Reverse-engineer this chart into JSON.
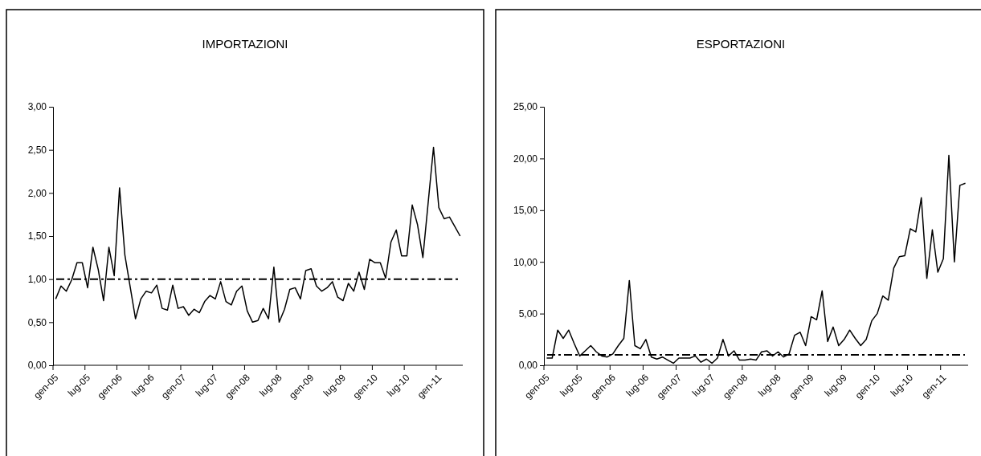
{
  "chart_data": [
    {
      "type": "line",
      "title": "IMPORTAZIONI",
      "categories": [
        "gen-05",
        null,
        null,
        null,
        null,
        null,
        "lug-05",
        null,
        null,
        null,
        null,
        null,
        "gen-06",
        null,
        null,
        null,
        null,
        null,
        "lug-06",
        null,
        null,
        null,
        null,
        null,
        "gen-07",
        null,
        null,
        null,
        null,
        null,
        "lug-07",
        null,
        null,
        null,
        null,
        null,
        "gen-08",
        null,
        null,
        null,
        null,
        null,
        "lug-08",
        null,
        null,
        null,
        null,
        null,
        "gen-09",
        null,
        null,
        null,
        null,
        null,
        "lug-09",
        null,
        null,
        null,
        null,
        null,
        "gen-10",
        null,
        null,
        null,
        null,
        null,
        "lug-10",
        null,
        null,
        null,
        null,
        null,
        "gen-11",
        null,
        null,
        null,
        null
      ],
      "series": [
        {
          "color": "#000000",
          "values": [
            0.77,
            0.92,
            0.86,
            0.99,
            1.19,
            1.19,
            0.9,
            1.37,
            1.11,
            0.75,
            1.37,
            1.04,
            2.06,
            1.28,
            0.91,
            0.54,
            0.77,
            0.86,
            0.84,
            0.93,
            0.66,
            0.64,
            0.93,
            0.66,
            0.68,
            0.58,
            0.65,
            0.61,
            0.74,
            0.81,
            0.77,
            0.97,
            0.74,
            0.7,
            0.86,
            0.92,
            0.63,
            0.5,
            0.52,
            0.66,
            0.54,
            1.14,
            0.5,
            0.65,
            0.88,
            0.9,
            0.77,
            1.1,
            1.12,
            0.92,
            0.86,
            0.9,
            0.97,
            0.79,
            0.75,
            0.95,
            0.86,
            1.08,
            0.88,
            1.23,
            1.19,
            1.19,
            1.01,
            1.43,
            1.57,
            1.27,
            1.27,
            1.86,
            1.63,
            1.25,
            1.89,
            2.53,
            1.83,
            1.7,
            1.72,
            1.61,
            1.5
          ]
        }
      ],
      "ylim": [
        0,
        3
      ],
      "yticks": [
        {
          "value": 0,
          "label": "0,00"
        },
        {
          "value": 0.5,
          "label": "0,50"
        },
        {
          "value": 1,
          "label": "1,00"
        },
        {
          "value": 1.5,
          "label": "1,50"
        },
        {
          "value": 2,
          "label": "2,00"
        },
        {
          "value": 2.5,
          "label": "2,50"
        },
        {
          "value": 3,
          "label": "3,00"
        }
      ],
      "ref_lines": [
        {
          "axis": "y",
          "value": 1,
          "color": "#000000",
          "line_style": "dashed"
        }
      ],
      "grid": false,
      "marker": "none",
      "line_style": "solid"
    },
    {
      "type": "line",
      "title": "ESPORTAZIONI",
      "categories": [
        "gen-05",
        null,
        null,
        null,
        null,
        null,
        "lug-05",
        null,
        null,
        null,
        null,
        null,
        "gen-06",
        null,
        null,
        null,
        null,
        null,
        "lug-06",
        null,
        null,
        null,
        null,
        null,
        "gen-07",
        null,
        null,
        null,
        null,
        null,
        "lug-07",
        null,
        null,
        null,
        null,
        null,
        "gen-08",
        null,
        null,
        null,
        null,
        null,
        "lug-08",
        null,
        null,
        null,
        null,
        null,
        "gen-09",
        null,
        null,
        null,
        null,
        null,
        "lug-09",
        null,
        null,
        null,
        null,
        null,
        "gen-10",
        null,
        null,
        null,
        null,
        null,
        "lug-10",
        null,
        null,
        null,
        null,
        null,
        "gen-11",
        null,
        null,
        null,
        null
      ],
      "series": [
        {
          "color": "#000000",
          "values": [
            0.7,
            0.7,
            3.4,
            2.6,
            3.4,
            2.1,
            0.9,
            1.4,
            1.9,
            1.3,
            0.9,
            0.8,
            1.1,
            1.9,
            2.6,
            8.2,
            1.9,
            1.6,
            2.5,
            0.8,
            0.6,
            0.8,
            0.5,
            0.2,
            0.7,
            0.7,
            0.7,
            0.9,
            0.3,
            0.6,
            0.2,
            0.7,
            2.5,
            0.9,
            1.4,
            0.5,
            0.5,
            0.6,
            0.5,
            1.3,
            1.4,
            0.9,
            1.3,
            0.8,
            1.1,
            2.9,
            3.2,
            1.9,
            4.7,
            4.4,
            7.2,
            2.3,
            3.7,
            1.9,
            2.5,
            3.4,
            2.6,
            1.9,
            2.5,
            4.3,
            5.0,
            6.7,
            6.3,
            9.4,
            10.5,
            10.6,
            13.2,
            12.9,
            16.2,
            8.4,
            13.1,
            9.0,
            10.3,
            20.3,
            10.0,
            17.4,
            17.6
          ]
        }
      ],
      "ylim": [
        0,
        25
      ],
      "yticks": [
        {
          "value": 0,
          "label": "0,00"
        },
        {
          "value": 5,
          "label": "5,00"
        },
        {
          "value": 10,
          "label": "10,00"
        },
        {
          "value": 15,
          "label": "15,00"
        },
        {
          "value": 20,
          "label": "20,00"
        },
        {
          "value": 25,
          "label": "25,00"
        }
      ],
      "ref_lines": [
        {
          "axis": "y",
          "value": 1,
          "color": "#000000",
          "line_style": "dashed"
        }
      ],
      "grid": false,
      "marker": "none",
      "line_style": "solid"
    }
  ]
}
